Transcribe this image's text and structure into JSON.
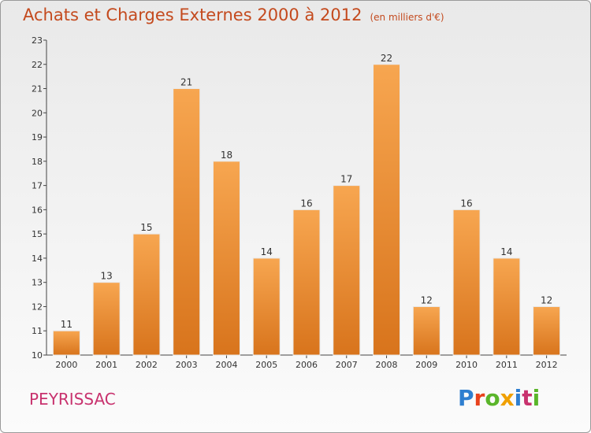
{
  "header": {
    "title": "Achats et Charges Externes 2000 à 2012",
    "unit": "(en milliers d'€)"
  },
  "footer": {
    "commune": "PEYRISSAC",
    "logo_text": "Proxiti",
    "logo_colors": [
      "#2f7fd0",
      "#e8421c",
      "#5ab52a",
      "#f0a000",
      "#2f7fd0",
      "#c8326e",
      "#5ab52a"
    ]
  },
  "colors": {
    "bar_top": "#f7a650",
    "bar_bottom": "#d8741c",
    "title": "#c44a1e",
    "commune": "#c8326e"
  },
  "chart_data": {
    "type": "bar",
    "title": "Achats et Charges Externes 2000 à 2012",
    "categories": [
      "2000",
      "2001",
      "2002",
      "2003",
      "2004",
      "2005",
      "2006",
      "2007",
      "2008",
      "2009",
      "2010",
      "2011",
      "2012"
    ],
    "values": [
      11,
      13,
      15,
      21,
      18,
      14,
      16,
      17,
      22,
      12,
      16,
      14,
      12
    ],
    "ylim": [
      10,
      23
    ],
    "yticks": [
      10,
      11,
      12,
      13,
      14,
      15,
      16,
      17,
      18,
      19,
      20,
      21,
      22,
      23
    ],
    "grid": false,
    "legend": "none"
  }
}
